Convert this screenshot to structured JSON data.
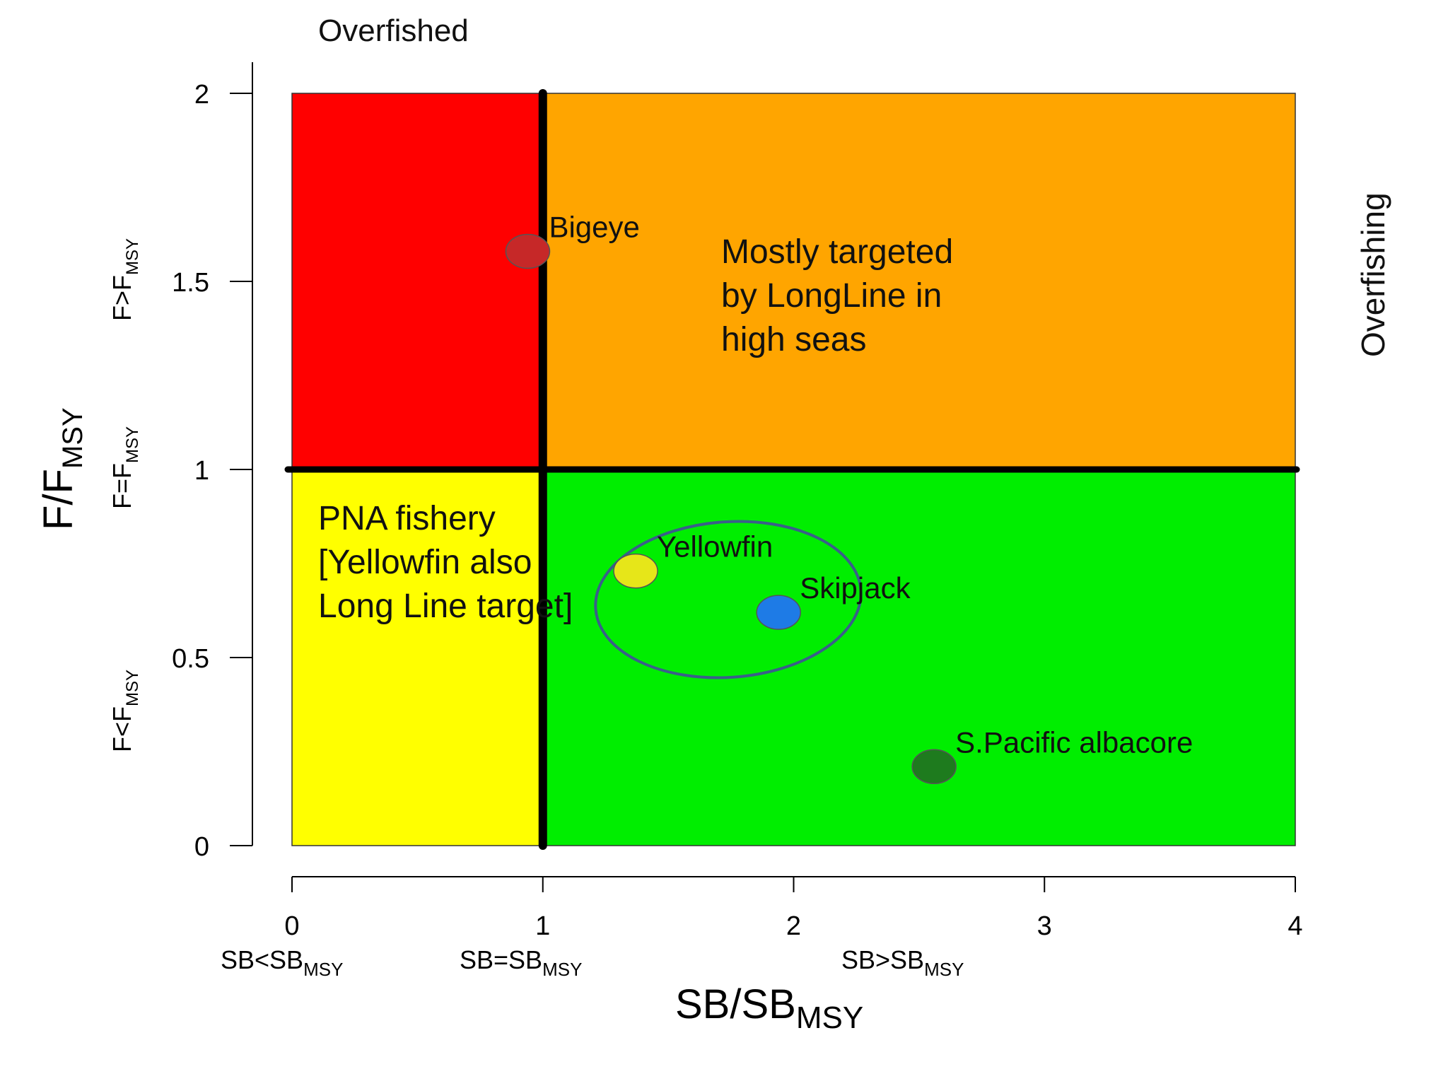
{
  "chart_data": {
    "type": "scatter",
    "title": "",
    "xlabel": "SB/SB",
    "xlabel_sub": "MSY",
    "ylabel": "F/F",
    "ylabel_sub": "MSY",
    "xlim": [
      0,
      4
    ],
    "ylim": [
      0,
      2
    ],
    "x_ticks": [
      "0",
      "1",
      "2",
      "3",
      "4"
    ],
    "y_ticks": [
      "0",
      "0.5",
      "1",
      "1.5",
      "2"
    ],
    "x_tick_values": [
      0,
      1,
      2,
      3,
      4
    ],
    "y_tick_values": [
      0,
      0.5,
      1,
      1.5,
      2
    ],
    "reference_lines": {
      "x": 1,
      "y": 1
    },
    "quadrant_colors": {
      "top_left": "#ff0000",
      "top_right": "#ffa500",
      "bottom_left": "#ffff00",
      "bottom_right": "#00ee00"
    },
    "points": [
      {
        "name": "Bigeye",
        "x": 0.94,
        "y": 1.58,
        "color": "#c62828"
      },
      {
        "name": "Yellowfin",
        "x": 1.37,
        "y": 0.73,
        "color": "#e6e619"
      },
      {
        "name": "Skipjack",
        "x": 1.94,
        "y": 0.62,
        "color": "#1e7be6"
      },
      {
        "name": "S.Pacific albacore",
        "x": 2.56,
        "y": 0.21,
        "color": "#1e7b1e"
      }
    ],
    "ellipse_color": "#3a5f8a"
  },
  "labels": {
    "top_left": "Overfished",
    "right_side": "Overfishing",
    "y_side_high_main": "F>F",
    "y_side_high_sub": "MSY",
    "y_side_mid_main": "F=F",
    "y_side_mid_sub": "MSY",
    "y_side_low_main": "F<F",
    "y_side_low_sub": "MSY",
    "x_side_low_main": "SB<SB",
    "x_side_low_sub": "MSY",
    "x_side_mid_main": "SB=SB",
    "x_side_mid_sub": "MSY",
    "x_side_high_main": "SB>SB",
    "x_side_high_sub": "MSY"
  },
  "annotations": {
    "orange_lines": [
      "Mostly targeted",
      "by LongLine  in",
      "high seas"
    ],
    "yellow_lines": [
      "PNA fishery",
      "[Yellowfin  also",
      "Long Line target]"
    ]
  }
}
